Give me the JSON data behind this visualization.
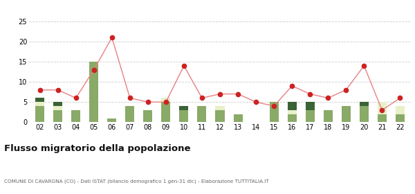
{
  "years": [
    "02",
    "03",
    "04",
    "05",
    "06",
    "07",
    "08",
    "09",
    "10",
    "11",
    "12",
    "13",
    "14",
    "15",
    "16",
    "17",
    "18",
    "19",
    "20",
    "21",
    "22"
  ],
  "iscritti_altri_comuni": [
    4,
    3,
    3,
    15,
    1,
    4,
    3,
    5,
    3,
    4,
    3,
    2,
    0,
    5,
    2,
    3,
    3,
    4,
    4,
    2,
    2
  ],
  "iscritti_estero": [
    1,
    1,
    0,
    0,
    0,
    0,
    0,
    1,
    0,
    0,
    1,
    0,
    0,
    0,
    1,
    0,
    0,
    0,
    0,
    3,
    2
  ],
  "iscritti_altri": [
    1,
    1,
    0,
    0,
    0,
    0,
    0,
    0,
    1,
    0,
    0,
    0,
    0,
    0,
    2,
    2,
    0,
    0,
    1,
    0,
    0
  ],
  "cancellati": [
    8,
    8,
    6,
    13,
    21,
    6,
    5,
    5,
    14,
    6,
    7,
    7,
    5,
    4,
    9,
    7,
    6,
    8,
    14,
    3,
    6
  ],
  "color_altri_comuni": "#8aaa68",
  "color_estero": "#e8f0c8",
  "color_altri": "#3a6336",
  "color_cancellati": "#cc2222",
  "color_cancellati_line": "#e88080",
  "title": "Flusso migratorio della popolazione",
  "subtitle": "COMUNE DI CAVARGNA (CO) - Dati ISTAT (bilancio demografico 1 gen-31 dic) - Elaborazione TUTTITALIA.IT",
  "ylim": [
    0,
    25
  ],
  "yticks": [
    0,
    5,
    10,
    15,
    20,
    25
  ],
  "background_color": "#ffffff",
  "grid_color": "#cccccc"
}
